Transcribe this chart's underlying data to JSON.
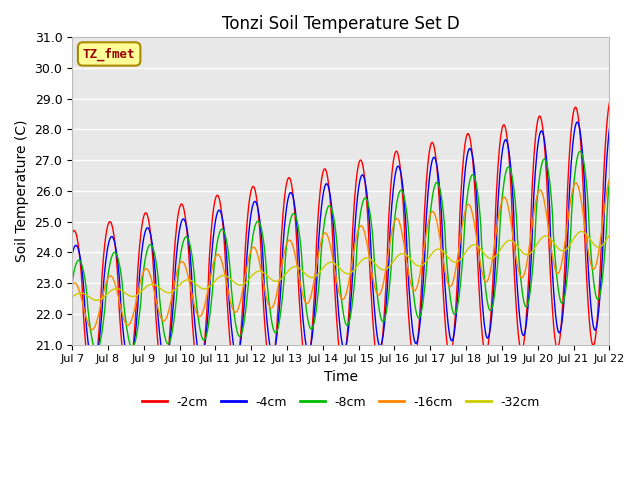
{
  "title": "Tonzi Soil Temperature Set D",
  "xlabel": "Time",
  "ylabel": "Soil Temperature (C)",
  "ylim": [
    21.0,
    31.0
  ],
  "yticks": [
    21.0,
    22.0,
    23.0,
    24.0,
    25.0,
    26.0,
    27.0,
    28.0,
    29.0,
    30.0,
    31.0
  ],
  "xtick_labels": [
    "Jul 7",
    "Jul 8",
    "Jul 9",
    "Jul 10",
    "Jul 11",
    "Jul 12",
    "Jul 13",
    "Jul 14",
    "Jul 15",
    "Jul 16",
    "Jul 17",
    "Jul 18",
    "Jul 19",
    "Jul 20",
    "Jul 21",
    "Jul 22"
  ],
  "series": [
    {
      "label": "-2cm",
      "color": "#ff0000"
    },
    {
      "label": "-4cm",
      "color": "#0000ff"
    },
    {
      "label": "-8cm",
      "color": "#00bb00"
    },
    {
      "label": "-16cm",
      "color": "#ff8800"
    },
    {
      "label": "-32cm",
      "color": "#cccc00"
    }
  ],
  "annotation_text": "TZ_fmet",
  "annotation_bg": "#ffff99",
  "annotation_border": "#aa8800",
  "annotation_text_color": "#990000",
  "plot_bg_color": "#e8e8e8",
  "grid_color": "#ffffff",
  "fig_bg_color": "#ffffff"
}
